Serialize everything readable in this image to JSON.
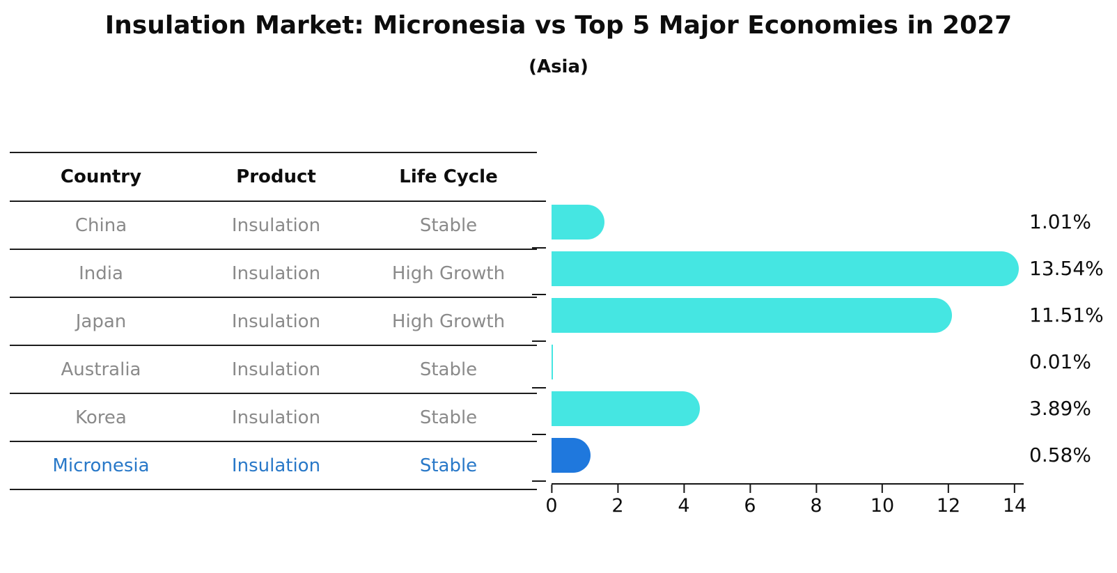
{
  "title": "Insulation Market: Micronesia vs Top 5 Major Economies in 2027",
  "subtitle": "(Asia)",
  "table": {
    "headers": [
      "Country",
      "Product",
      "Life Cycle"
    ],
    "rows": [
      {
        "country": "China",
        "product": "Insulation",
        "life_cycle": "Stable",
        "highlighted": false
      },
      {
        "country": "India",
        "product": "Insulation",
        "life_cycle": "High Growth",
        "highlighted": false
      },
      {
        "country": "Japan",
        "product": "Insulation",
        "life_cycle": "High Growth",
        "highlighted": false
      },
      {
        "country": "Australia",
        "product": "Insulation",
        "life_cycle": "Stable",
        "highlighted": false
      },
      {
        "country": "Korea",
        "product": "Insulation",
        "life_cycle": "Stable",
        "highlighted": false
      },
      {
        "country": "Micronesia",
        "product": "Insulation",
        "life_cycle": "Stable",
        "highlighted": true
      }
    ]
  },
  "chart_data": {
    "type": "bar",
    "orientation": "horizontal",
    "title": "Insulation Market: Micronesia vs Top 5 Major Economies in 2027",
    "subtitle": "(Asia)",
    "categories": [
      "China",
      "India",
      "Japan",
      "Australia",
      "Korea",
      "Micronesia"
    ],
    "values": [
      1.01,
      13.54,
      11.51,
      0.01,
      3.89,
      0.58
    ],
    "bar_labels": [
      "1.01%",
      "13.54%",
      "11.51%",
      "0.01%",
      "3.89%",
      "0.58%"
    ],
    "xlim": [
      0,
      14
    ],
    "x_ticks": [
      "0",
      "2",
      "4",
      "6",
      "8",
      "10",
      "12",
      "14"
    ],
    "grid": false,
    "legend": "none",
    "highlight_index": 5,
    "bar_color": "#45E6E2",
    "highlight_color": "#1F78DD",
    "highlight_text_color": "#2878C8",
    "row_text_color": "#8A8A8A",
    "axis_color": "#151515"
  }
}
